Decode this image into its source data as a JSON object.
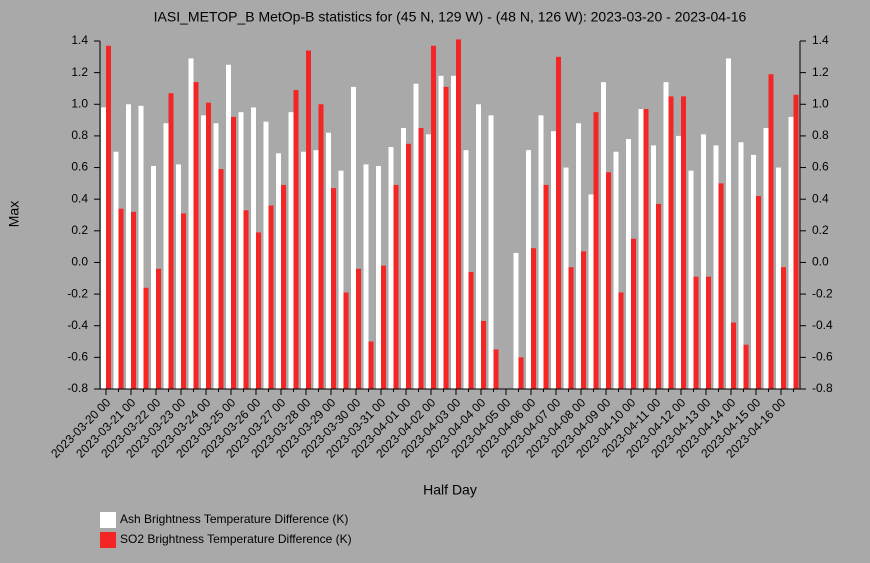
{
  "chart_data": {
    "type": "bar",
    "title": "IASI_METOP_B MetOp-B statistics for (45 N, 129 W) - (48 N, 126 W): 2023-03-20 - 2023-04-16",
    "x_label": "Half Day",
    "y_label": "Max",
    "categories": [
      "2023-03-20 00",
      null,
      "2023-03-21 00",
      null,
      "2023-03-22 00",
      null,
      "2023-03-23 00",
      null,
      "2023-03-24 00",
      null,
      "2023-03-25 00",
      null,
      "2023-03-26 00",
      null,
      "2023-03-27 00",
      null,
      "2023-03-28 00",
      null,
      "2023-03-29 00",
      null,
      "2023-03-30 00",
      null,
      "2023-03-31 00",
      null,
      "2023-04-01 00",
      null,
      "2023-04-02 00",
      null,
      "2023-04-03 00",
      null,
      "2023-04-04 00",
      null,
      "2023-04-05 00",
      null,
      "2023-04-06 00",
      null,
      "2023-04-07 00",
      null,
      "2023-04-08 00",
      null,
      "2023-04-09 00",
      null,
      "2023-04-10 00",
      null,
      "2023-04-11 00",
      null,
      "2023-04-12 00",
      null,
      "2023-04-13 00",
      null,
      "2023-04-14 00",
      null,
      "2023-04-15 00",
      null,
      "2023-04-16 00",
      null
    ],
    "series": [
      {
        "name": "Ash Brightness Temperature Difference (K)",
        "color": "#ffffff",
        "values": [
          0.98,
          0.7,
          1.0,
          0.99,
          0.61,
          0.88,
          0.62,
          1.29,
          0.93,
          0.88,
          1.25,
          0.95,
          0.98,
          0.89,
          0.69,
          0.95,
          0.7,
          0.71,
          0.82,
          0.58,
          1.11,
          0.62,
          0.61,
          0.73,
          0.85,
          1.13,
          0.81,
          1.18,
          1.18,
          0.71,
          1.0,
          0.93,
          null,
          0.06,
          0.71,
          0.93,
          0.83,
          0.6,
          0.88,
          0.43,
          1.14,
          0.7,
          0.78,
          0.97,
          0.74,
          1.14,
          0.8,
          0.58,
          0.81,
          0.74,
          1.29,
          0.76,
          0.68,
          0.85,
          0.6,
          0.92
        ]
      },
      {
        "name": "SO2 Brightness Temperature Difference (K)",
        "color": "#f42525",
        "values": [
          1.37,
          0.34,
          0.32,
          -0.16,
          -0.04,
          1.07,
          0.31,
          1.14,
          1.01,
          0.59,
          0.92,
          0.33,
          0.19,
          0.36,
          0.49,
          1.09,
          1.34,
          1.0,
          0.47,
          -0.19,
          -0.04,
          -0.5,
          -0.02,
          0.49,
          0.75,
          0.85,
          1.37,
          1.11,
          1.41,
          -0.06,
          -0.37,
          -0.55,
          null,
          -0.6,
          0.09,
          0.49,
          1.3,
          -0.03,
          0.07,
          0.95,
          0.57,
          -0.19,
          0.15,
          0.97,
          0.37,
          1.05,
          1.05,
          -0.09,
          -0.09,
          0.5,
          -0.38,
          -0.52,
          0.42,
          1.19,
          -0.03,
          1.06
        ]
      }
    ],
    "ylim": [
      -0.8,
      1.4
    ],
    "yticks": [
      -0.8,
      -0.6,
      -0.4,
      -0.2,
      {
        "value": 0,
        "label": "0.0"
      },
      0.2,
      0.4,
      0.6,
      0.8,
      {
        "value": 1,
        "label": "1.0"
      },
      1.2,
      1.4
    ]
  }
}
